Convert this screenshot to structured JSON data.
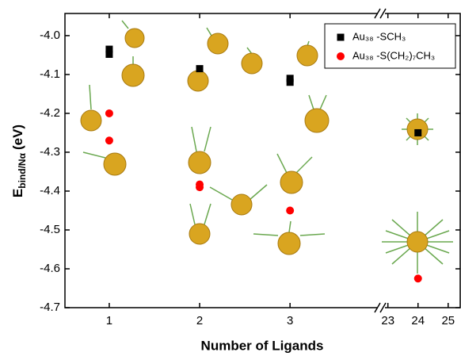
{
  "chart_data": {
    "type": "scatter",
    "x_label": "Number of Ligands",
    "y_label": {
      "main": "E",
      "sub": "bind/Nα",
      "unit": "(eV)"
    },
    "xlim_segments": [
      [
        0.51,
        3.98
      ],
      [
        22.85,
        25.4
      ]
    ],
    "xticks": [
      1,
      2,
      3,
      23,
      24,
      25
    ],
    "ylim": [
      -4.7,
      -3.943
    ],
    "yticks": [
      {
        "value": -4,
        "label": "-4.0"
      },
      -4.1,
      -4.2,
      -4.3,
      -4.4,
      -4.5,
      -4.6,
      -4.7
    ],
    "legend_position": "upper right",
    "series": [
      {
        "name": "Au₃₈ -SCH₃",
        "color": "#000000",
        "marker": "square",
        "x": [
          1,
          1,
          2,
          3,
          3,
          24
        ],
        "values": [
          -4.035,
          -4.048,
          -4.085,
          -4.11,
          -4.12,
          -4.25
        ]
      },
      {
        "name": "Au₃₈ -S(CH₂)₇CH₃",
        "color": "#ff0000",
        "marker": "circle",
        "x": [
          1,
          1,
          2,
          2,
          3,
          24
        ],
        "values": [
          -4.2,
          -4.27,
          -4.383,
          -4.39,
          -4.45,
          -4.625
        ]
      }
    ]
  }
}
